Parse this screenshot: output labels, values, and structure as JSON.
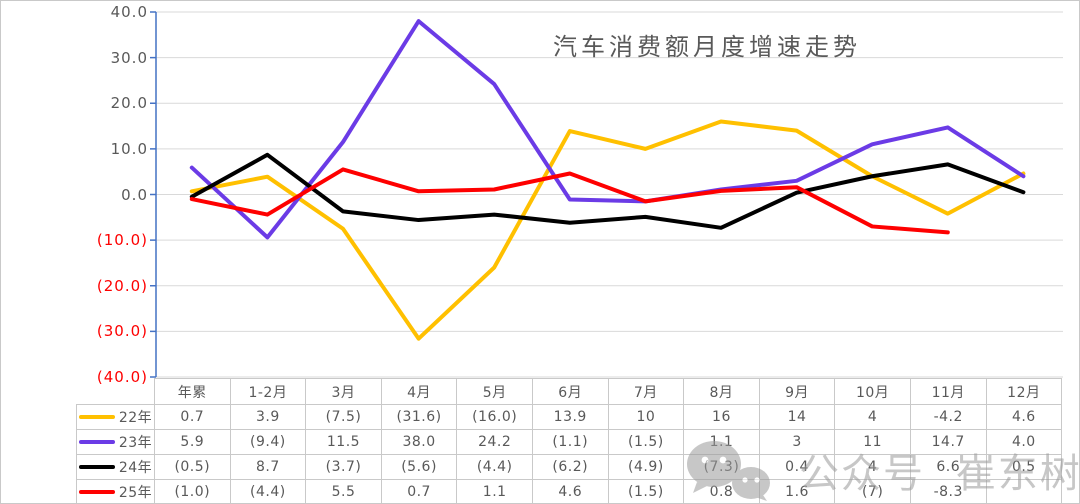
{
  "title": "汽车消费额月度增速走势",
  "watermark": {
    "text": "公众号 崔东树",
    "icon": "wechat-bubbles-icon"
  },
  "colors": {
    "axis_line": "#4472c4",
    "gridline": "#d9d9d9",
    "text_gray": "#595959",
    "negative_label_red": "#fe0000",
    "table_border": "#c9c9c9",
    "series_22": "#ffc000",
    "series_23": "#6b3be6",
    "series_24": "#000000",
    "series_25": "#fe0000"
  },
  "chart_data": {
    "type": "line",
    "title": "汽车消费额月度增速走势",
    "xlabel": "",
    "ylabel": "",
    "ylim": [
      -40,
      40
    ],
    "y_step": 10,
    "grid": true,
    "legend_position": "table-left",
    "y_tick_labels": [
      "40.0",
      "30.0",
      "20.0",
      "10.0",
      "0.0",
      "(10.0)",
      "(20.0)",
      "(30.0)",
      "(40.0)"
    ],
    "categories": [
      "年累",
      "1-2月",
      "3月",
      "4月",
      "5月",
      "6月",
      "7月",
      "8月",
      "9月",
      "10月",
      "11月",
      "12月"
    ],
    "series": [
      {
        "name": "22年",
        "color": "#ffc000",
        "values": [
          0.7,
          3.9,
          -7.5,
          -31.6,
          -16.0,
          13.9,
          10,
          16,
          14,
          4,
          -4.2,
          4.6
        ],
        "display": [
          "0.7",
          "3.9",
          "(7.5)",
          "(31.6)",
          "(16.0)",
          "13.9",
          "10",
          "16",
          "14",
          "4",
          "-4.2",
          "4.6"
        ]
      },
      {
        "name": "23年",
        "color": "#6b3be6",
        "values": [
          5.9,
          -9.4,
          11.5,
          38.0,
          24.2,
          -1.1,
          -1.5,
          1.1,
          3,
          11,
          14.7,
          4.0
        ],
        "display": [
          "5.9",
          "(9.4)",
          "11.5",
          "38.0",
          "24.2",
          "(1.1)",
          "(1.5)",
          "1.1",
          "3",
          "11",
          "14.7",
          "4.0"
        ]
      },
      {
        "name": "24年",
        "color": "#000000",
        "values": [
          -0.5,
          8.7,
          -3.7,
          -5.6,
          -4.4,
          -6.2,
          -4.9,
          -7.3,
          0.4,
          4,
          6.6,
          0.5
        ],
        "display": [
          "(0.5)",
          "8.7",
          "(3.7)",
          "(5.6)",
          "(4.4)",
          "(6.2)",
          "(4.9)",
          "(7.3)",
          "0.4",
          "4",
          "6.6",
          "0.5"
        ]
      },
      {
        "name": "25年",
        "color": "#fe0000",
        "values": [
          -1.0,
          -4.4,
          5.5,
          0.7,
          1.1,
          4.6,
          -1.5,
          0.8,
          1.6,
          -7,
          -8.3,
          null
        ],
        "display": [
          "(1.0)",
          "(4.4)",
          "5.5",
          "0.7",
          "1.1",
          "4.6",
          "(1.5)",
          "0.8",
          "1.6",
          "(7)",
          "-8.3",
          ""
        ]
      }
    ]
  }
}
